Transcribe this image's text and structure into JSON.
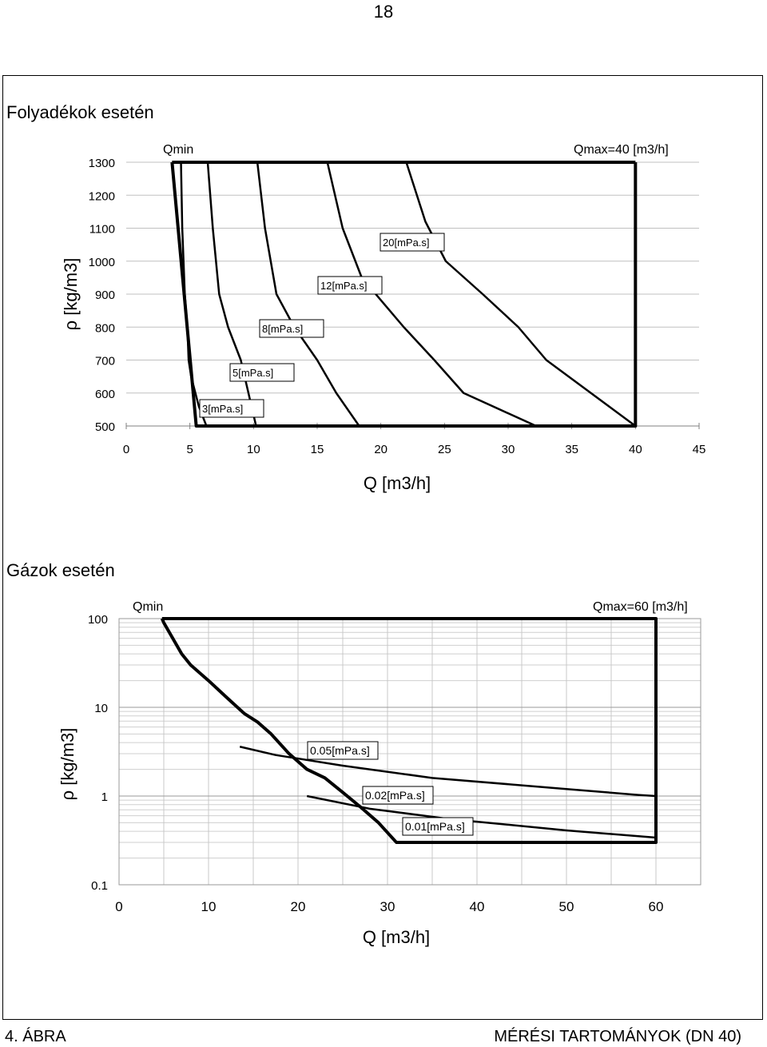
{
  "page_number": "18",
  "footer": {
    "figure_label": "4. ÁBRA",
    "caption": "MÉRÉSI TARTOMÁNYOK (DN 40)"
  },
  "chart_data": [
    {
      "type": "line",
      "title": "Folyadékok esetén",
      "xlabel": "Q [m3/h]",
      "ylabel": "ρ [kg/m3]",
      "xlim": [
        0,
        45
      ],
      "ylim": [
        500,
        1300
      ],
      "x_ticks": [
        0,
        5,
        10,
        15,
        20,
        25,
        30,
        35,
        40,
        45
      ],
      "y_ticks": [
        500,
        600,
        700,
        800,
        900,
        1000,
        1100,
        1200,
        1300
      ],
      "grid": "horizontal",
      "annotations": {
        "qmin": "Qmin",
        "qmax": "Qmax=40 [m3/h]"
      },
      "boundary": {
        "name": "Qmin",
        "points": [
          [
            3.6,
            1300
          ],
          [
            5.5,
            500
          ],
          [
            40,
            500
          ],
          [
            40,
            1300
          ]
        ],
        "top_line": [
          [
            3.6,
            1300
          ],
          [
            40,
            1300
          ]
        ]
      },
      "series": [
        {
          "name": "3[mPa.s]",
          "x": [
            4.3,
            4.4,
            4.6,
            4.8,
            4.9,
            5.1,
            5.7,
            6.3
          ],
          "y": [
            1300,
            1100,
            900,
            800,
            700,
            650,
            560,
            500
          ]
        },
        {
          "name": "5[mPa.s]",
          "x": [
            6.4,
            6.8,
            7.3,
            8.0,
            9.0,
            9.6,
            10.2
          ],
          "y": [
            1300,
            1100,
            900,
            800,
            700,
            600,
            500
          ]
        },
        {
          "name": "8[mPa.s]",
          "x": [
            10.3,
            10.9,
            11.8,
            13.2,
            15.0,
            16.5,
            18.3
          ],
          "y": [
            1300,
            1100,
            900,
            800,
            700,
            600,
            500
          ]
        },
        {
          "name": "12[mPa.s]",
          "x": [
            15.8,
            17.0,
            18.5,
            21.8,
            24.2,
            26.5,
            32.2
          ],
          "y": [
            1300,
            1100,
            950,
            800,
            700,
            600,
            500
          ]
        },
        {
          "name": "20[mPa.s]",
          "x": [
            22.0,
            23.5,
            25.1,
            28.0,
            30.8,
            33.0,
            40
          ],
          "y": [
            1300,
            1120,
            1000,
            900,
            800,
            700,
            500
          ]
        }
      ]
    },
    {
      "type": "line",
      "title": "Gázok esetén",
      "xlabel": "Q [m3/h]",
      "ylabel": "ρ [kg/m3]",
      "xlim": [
        0,
        65
      ],
      "ylim": [
        0.1,
        100
      ],
      "yscale": "log",
      "x_ticks": [
        0,
        10,
        20,
        30,
        40,
        50,
        60
      ],
      "y_ticks": [
        "0.1",
        "1",
        "10",
        "100"
      ],
      "grid": "both",
      "annotations": {
        "qmin": "Qmin",
        "qmax": "Qmax=60 [m3/h]"
      },
      "boundary": {
        "name": "Qmin",
        "points": [
          [
            4.8,
            100
          ],
          [
            5,
            90
          ],
          [
            6,
            60
          ],
          [
            7,
            40
          ],
          [
            8,
            30
          ],
          [
            10,
            20
          ],
          [
            12,
            13
          ],
          [
            14,
            8.5
          ],
          [
            15.5,
            6.8
          ],
          [
            17,
            5
          ],
          [
            19,
            3
          ],
          [
            21,
            2
          ],
          [
            23,
            1.6
          ],
          [
            25,
            1.1
          ],
          [
            27,
            0.75
          ],
          [
            29,
            0.5
          ],
          [
            31,
            0.3
          ],
          [
            60,
            0.3
          ],
          [
            60,
            100
          ],
          [
            4.8,
            100
          ]
        ]
      },
      "series": [
        {
          "name": "0.05[mPa.s]",
          "x": [
            13.5,
            17.5,
            25,
            35,
            50,
            58,
            60
          ],
          "y": [
            3.6,
            2.9,
            2.2,
            1.6,
            1.2,
            1.03,
            1.0
          ]
        },
        {
          "name": "0.02[mPa.s]",
          "x": [
            21,
            28,
            37,
            50,
            60
          ],
          "y": [
            1.0,
            0.72,
            0.55,
            0.41,
            0.34
          ]
        },
        {
          "name": "0.01[mPa.s]",
          "x": [],
          "y": []
        }
      ]
    }
  ]
}
